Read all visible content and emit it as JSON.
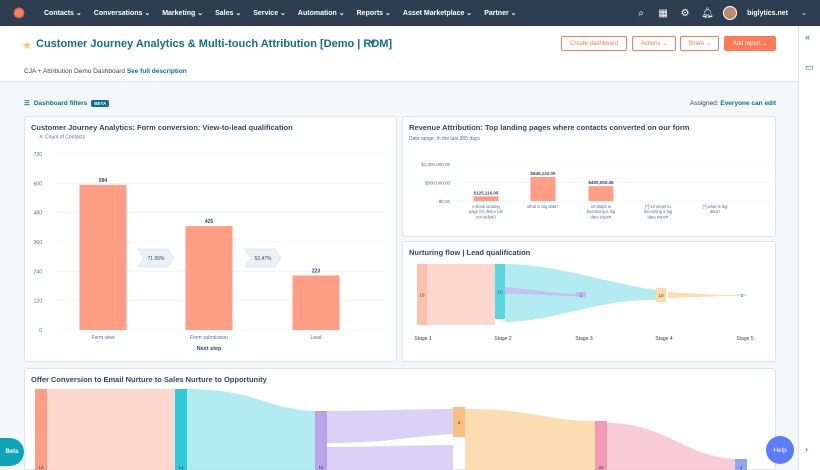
{
  "nav": {
    "logo_icon": "hubspot-sprocket-icon",
    "items": [
      "Contacts",
      "Conversations",
      "Marketing",
      "Sales",
      "Service",
      "Automation",
      "Reports",
      "Asset Marketplace",
      "Partner"
    ],
    "account": "biglytics.net"
  },
  "header": {
    "title": "Customer Journey Analytics & Multi-touch Attribution [Demo | RDM]",
    "subtitle_prefix": "CJA + Attribution Demo Dashboard",
    "subtitle_link": "See full description",
    "buttons": {
      "create": "Create dashboard",
      "actions": "Actions",
      "share": "Share",
      "add": "Add report"
    }
  },
  "filters": {
    "label": "Dashboard filters",
    "beta": "BETA",
    "assigned_label": "Assigned:",
    "assigned_value": "Everyone can edit"
  },
  "cards": {
    "form": {
      "title": "Customer Journey Analytics: Form conversion: View-to-lead qualification",
      "legend": "Count of Contacts",
      "xlabel": "Next step",
      "rates": [
        "71.55%",
        "52.47%"
      ]
    },
    "revenue": {
      "title": "Revenue Attribution: Top landing pages where contacts converted on our form",
      "subtitle": "Date range: In the last 365 days"
    },
    "nurture": {
      "title": "Nurturing flow | Lead qualification",
      "stages": [
        "Stage 1",
        "Stage 2",
        "Stage 3",
        "Stage 4",
        "Stage 5"
      ],
      "node_values": [
        "16",
        "10",
        "1",
        "10",
        "1"
      ]
    },
    "offer": {
      "title": "Offer Conversion to Email Nurture to Sales Nurture to Opportunity",
      "node_values": [
        "14",
        "14",
        "15",
        "3",
        "20",
        "4"
      ]
    }
  },
  "buttons": {
    "beta": "Beta",
    "help": "Help"
  },
  "colors": {
    "accent": "#ff7a59",
    "nav_bg": "#2d3e50",
    "link": "#0f6e8a",
    "bar": "#ff9e85"
  },
  "chart_data": [
    {
      "type": "bar",
      "title": "Customer Journey Analytics: Form conversion: View-to-lead qualification",
      "categories": [
        "Form view",
        "Form submission",
        "Lead"
      ],
      "values": [
        594,
        425,
        223
      ],
      "series": [
        {
          "name": "Count of Contacts",
          "values": [
            594,
            425,
            223
          ]
        }
      ],
      "xlabel": "Next step",
      "ylabel": "",
      "ylim": [
        0,
        720
      ],
      "yticks": [
        "0",
        "120",
        "240",
        "360",
        "480",
        "600",
        "720"
      ],
      "grid": true
    },
    {
      "type": "bar",
      "title": "Revenue Attribution: Top landing pages where contacts converted on our form",
      "categories": [
        "e-book landing page for demo (do not delete)",
        "what is big data?",
        "10 steps to becoming a big data expert",
        "[*] 10 steps to becoming a big data expert",
        "[*] what is big data?"
      ],
      "values": [
        125116.05,
        649132.0,
        400000.45,
        0,
        0
      ],
      "data_labels": [
        "$125,116.05",
        "$649,132.00",
        "$400,000.45",
        "",
        ""
      ],
      "ylim": [
        0,
        1000000
      ],
      "yticks": [
        "$0.00",
        "$500,000.00",
        "$1,000,000.00"
      ],
      "grid": true
    }
  ]
}
